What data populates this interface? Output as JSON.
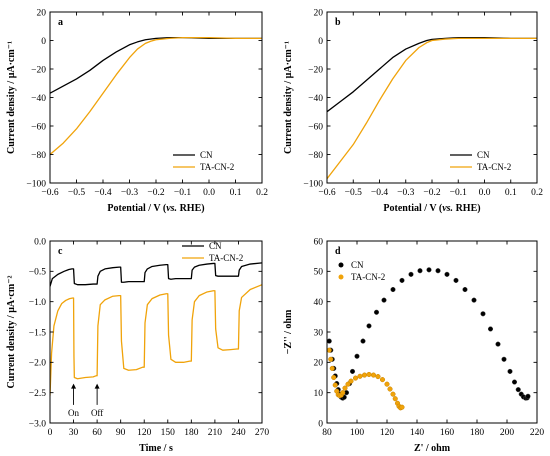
{
  "colors": {
    "cn": "#000000",
    "ta": "#F0A30A"
  },
  "chart_data": [
    {
      "type": "line",
      "panel_label": "a",
      "xlabel_main": "Potential / V (",
      "xlabel_ital": "vs.",
      "xlabel_end": " RHE)",
      "ylabel": "Current density / μA·cm⁻¹",
      "xlim": [
        -0.6,
        0.2
      ],
      "ylim": [
        -100,
        20
      ],
      "xticks": [
        -0.6,
        -0.5,
        -0.4,
        -0.3,
        -0.2,
        -0.1,
        0.0,
        0.1,
        0.2
      ],
      "xtick_labels": [
        "−0.6",
        "−0.5",
        "−0.4",
        "−0.3",
        "−0.2",
        "−0.1",
        "0.0",
        "0.1",
        "0.2"
      ],
      "yticks": [
        -100,
        -80,
        -60,
        -40,
        -20,
        0,
        20
      ],
      "ytick_labels": [
        "−100",
        "−80",
        "−60",
        "−40",
        "−20",
        "0",
        "20"
      ],
      "legend": [
        "CN",
        "TA-CN-2"
      ],
      "series": [
        {
          "name": "CN",
          "x": [
            -0.6,
            -0.55,
            -0.5,
            -0.45,
            -0.4,
            -0.35,
            -0.3,
            -0.27,
            -0.24,
            -0.2,
            -0.15,
            -0.1,
            0.0,
            0.1,
            0.2
          ],
          "y": [
            -37,
            -32,
            -27,
            -21,
            -14,
            -8,
            -3,
            -1,
            0.5,
            1.5,
            2,
            2,
            1.5,
            1.5,
            1.5
          ]
        },
        {
          "name": "TA-CN-2",
          "x": [
            -0.6,
            -0.55,
            -0.5,
            -0.45,
            -0.4,
            -0.35,
            -0.3,
            -0.27,
            -0.24,
            -0.22,
            -0.2,
            -0.15,
            -0.1,
            0.0,
            0.1,
            0.2
          ],
          "y": [
            -80,
            -72,
            -62,
            -50,
            -37,
            -24,
            -12,
            -6,
            -2,
            -0.5,
            0.5,
            1.5,
            2,
            2,
            1.5,
            1.5
          ]
        }
      ]
    },
    {
      "type": "line",
      "panel_label": "b",
      "xlabel_main": "Potential / V (",
      "xlabel_ital": "vs.",
      "xlabel_end": " RHE)",
      "ylabel": "Current density / μA·cm⁻¹",
      "xlim": [
        -0.6,
        0.2
      ],
      "ylim": [
        -100,
        20
      ],
      "xticks": [
        -0.6,
        -0.5,
        -0.4,
        -0.3,
        -0.2,
        -0.1,
        0.0,
        0.1,
        0.2
      ],
      "xtick_labels": [
        "−0.6",
        "−0.5",
        "−0.4",
        "−0.3",
        "−0.2",
        "−0.1",
        "0.0",
        "0.1",
        "0.2"
      ],
      "yticks": [
        -100,
        -80,
        -60,
        -40,
        -20,
        0,
        20
      ],
      "ytick_labels": [
        "−100",
        "−80",
        "−60",
        "−40",
        "−20",
        "0",
        "20"
      ],
      "legend": [
        "CN",
        "TA-CN-2"
      ],
      "series": [
        {
          "name": "CN",
          "x": [
            -0.6,
            -0.55,
            -0.5,
            -0.45,
            -0.4,
            -0.35,
            -0.3,
            -0.25,
            -0.22,
            -0.2,
            -0.15,
            -0.1,
            0.0,
            0.1,
            0.2
          ],
          "y": [
            -50,
            -43,
            -36,
            -28,
            -20,
            -12,
            -6,
            -2,
            0,
            0.8,
            1.5,
            2,
            2,
            1.5,
            1.5
          ]
        },
        {
          "name": "TA-CN-2",
          "x": [
            -0.6,
            -0.55,
            -0.5,
            -0.45,
            -0.4,
            -0.35,
            -0.3,
            -0.25,
            -0.22,
            -0.2,
            -0.15,
            -0.1,
            0.0,
            0.1,
            0.2
          ],
          "y": [
            -97,
            -85,
            -73,
            -58,
            -42,
            -27,
            -14,
            -5,
            -1.5,
            0,
            1,
            1.5,
            1.5,
            1.5,
            1.5
          ]
        }
      ]
    },
    {
      "type": "line",
      "panel_label": "c",
      "xlabel": "Time / s",
      "ylabel": "Current density / μA·cm⁻²",
      "xlim": [
        0,
        270
      ],
      "ylim": [
        -3.0,
        0
      ],
      "xticks": [
        0,
        30,
        60,
        90,
        120,
        150,
        180,
        210,
        240,
        270
      ],
      "xtick_labels": [
        "0",
        "30",
        "60",
        "90",
        "120",
        "150",
        "180",
        "210",
        "240",
        "270"
      ],
      "yticks": [
        -3.0,
        -2.5,
        -2.0,
        -1.5,
        -1.0,
        -0.5,
        0.0
      ],
      "ytick_labels": [
        "−3.0",
        "−2.5",
        "−2.0",
        "−1.5",
        "−1.0",
        "−0.5",
        "0.0"
      ],
      "legend": [
        "CN",
        "TA-CN-2"
      ],
      "annotations": [
        {
          "text": "On",
          "x": 30,
          "y_text": -2.85,
          "y_tip": -2.35
        },
        {
          "text": "Off",
          "x": 60,
          "y_text": -2.85,
          "y_tip": -2.35
        }
      ],
      "series": [
        {
          "name": "CN",
          "x": [
            0,
            3,
            10,
            18,
            22,
            24,
            28,
            30,
            31,
            35,
            45,
            55,
            59,
            60,
            61,
            64,
            70,
            80,
            88,
            90,
            91,
            94,
            100,
            110,
            118,
            120,
            121,
            124,
            130,
            140,
            148,
            150,
            151,
            154,
            160,
            170,
            178,
            180,
            181,
            184,
            190,
            200,
            208,
            210,
            211,
            214,
            220,
            230,
            238,
            240,
            241,
            244,
            255,
            270
          ],
          "y": [
            -0.75,
            -0.62,
            -0.55,
            -0.5,
            -0.48,
            -0.47,
            -0.46,
            -0.46,
            -0.7,
            -0.72,
            -0.72,
            -0.71,
            -0.71,
            -0.71,
            -0.58,
            -0.5,
            -0.46,
            -0.44,
            -0.43,
            -0.43,
            -0.68,
            -0.68,
            -0.67,
            -0.67,
            -0.67,
            -0.67,
            -0.52,
            -0.46,
            -0.42,
            -0.4,
            -0.39,
            -0.39,
            -0.62,
            -0.63,
            -0.62,
            -0.62,
            -0.62,
            -0.62,
            -0.48,
            -0.43,
            -0.4,
            -0.38,
            -0.37,
            -0.37,
            -0.57,
            -0.58,
            -0.58,
            -0.58,
            -0.58,
            -0.58,
            -0.48,
            -0.42,
            -0.38,
            -0.36
          ]
        },
        {
          "name": "TA-CN-2",
          "x": [
            0,
            2,
            5,
            10,
            15,
            20,
            25,
            29,
            30,
            30.5,
            31,
            35,
            45,
            55,
            59,
            60,
            61,
            64,
            70,
            80,
            88,
            90,
            91,
            94,
            100,
            110,
            118,
            120,
            121,
            124,
            130,
            140,
            148,
            150,
            151,
            154,
            160,
            170,
            178,
            180,
            181,
            184,
            190,
            200,
            208,
            210,
            211,
            214,
            220,
            230,
            238,
            240,
            241,
            244,
            255,
            270
          ],
          "y": [
            -2.55,
            -1.85,
            -1.4,
            -1.15,
            -1.03,
            -0.98,
            -0.95,
            -0.94,
            -0.94,
            -1.9,
            -2.25,
            -2.27,
            -2.25,
            -2.24,
            -2.22,
            -2.22,
            -1.4,
            -1.05,
            -0.97,
            -0.91,
            -0.9,
            -0.9,
            -1.65,
            -2.1,
            -2.13,
            -2.12,
            -2.08,
            -2.08,
            -1.35,
            -1.05,
            -0.95,
            -0.89,
            -0.87,
            -0.87,
            -1.55,
            -1.95,
            -2.0,
            -2.0,
            -1.98,
            -1.98,
            -1.3,
            -1.0,
            -0.9,
            -0.84,
            -0.82,
            -0.82,
            -1.45,
            -1.76,
            -1.8,
            -1.79,
            -1.78,
            -1.78,
            -1.15,
            -0.93,
            -0.8,
            -0.72
          ]
        }
      ]
    },
    {
      "type": "scatter",
      "panel_label": "d",
      "xlabel": "Z' / ohm",
      "ylabel": "−Z'' / ohm",
      "xlim": [
        80,
        220
      ],
      "ylim": [
        0,
        60
      ],
      "xticks": [
        80,
        100,
        120,
        140,
        160,
        180,
        200,
        220
      ],
      "xtick_labels": [
        "80",
        "100",
        "120",
        "140",
        "160",
        "180",
        "200",
        "220"
      ],
      "yticks": [
        0,
        10,
        20,
        30,
        40,
        50,
        60
      ],
      "ytick_labels": [
        "0",
        "10",
        "20",
        "30",
        "40",
        "50",
        "60"
      ],
      "legend": [
        "CN",
        "TA-CN-2"
      ],
      "series": [
        {
          "name": "CN",
          "x": [
            81.5,
            82.5,
            83.5,
            84.5,
            85.5,
            86.5,
            87.5,
            88.5,
            89.5,
            90.5,
            91.5,
            93,
            95,
            97,
            100,
            104,
            108,
            113,
            118,
            124,
            130,
            136,
            142,
            148,
            154,
            160,
            166,
            172,
            178,
            184,
            189,
            194,
            198,
            202,
            205,
            207.5,
            209.5,
            211,
            212.5,
            213.5,
            214
          ],
          "y": [
            27,
            24,
            21,
            18,
            15.5,
            13,
            11,
            9.5,
            8.5,
            8.2,
            8.5,
            10,
            13,
            17,
            22,
            27,
            32,
            36.5,
            40.5,
            44,
            47,
            49,
            50.2,
            50.5,
            50.2,
            49,
            47,
            44,
            40.5,
            36,
            31,
            26,
            21,
            17,
            13.5,
            11,
            9.5,
            8.6,
            8.2,
            8.3,
            8.8
          ]
        },
        {
          "name": "TA-CN-2",
          "x": [
            81.5,
            82.5,
            83.5,
            84.5,
            85.5,
            86.5,
            87.5,
            88.5,
            89.5,
            90.5,
            92,
            94,
            96,
            99,
            102,
            105,
            108,
            111,
            114,
            117,
            120,
            122,
            124,
            125.5,
            127,
            128,
            129,
            130
          ],
          "y": [
            24,
            21,
            18,
            15,
            12.5,
            10.5,
            9.3,
            9,
            9.2,
            10,
            11.5,
            12.8,
            13.8,
            14.8,
            15.4,
            15.8,
            16,
            15.8,
            15.3,
            14.3,
            12.8,
            11.2,
            9.5,
            8,
            6.5,
            5.5,
            5,
            5.2
          ]
        }
      ]
    }
  ]
}
